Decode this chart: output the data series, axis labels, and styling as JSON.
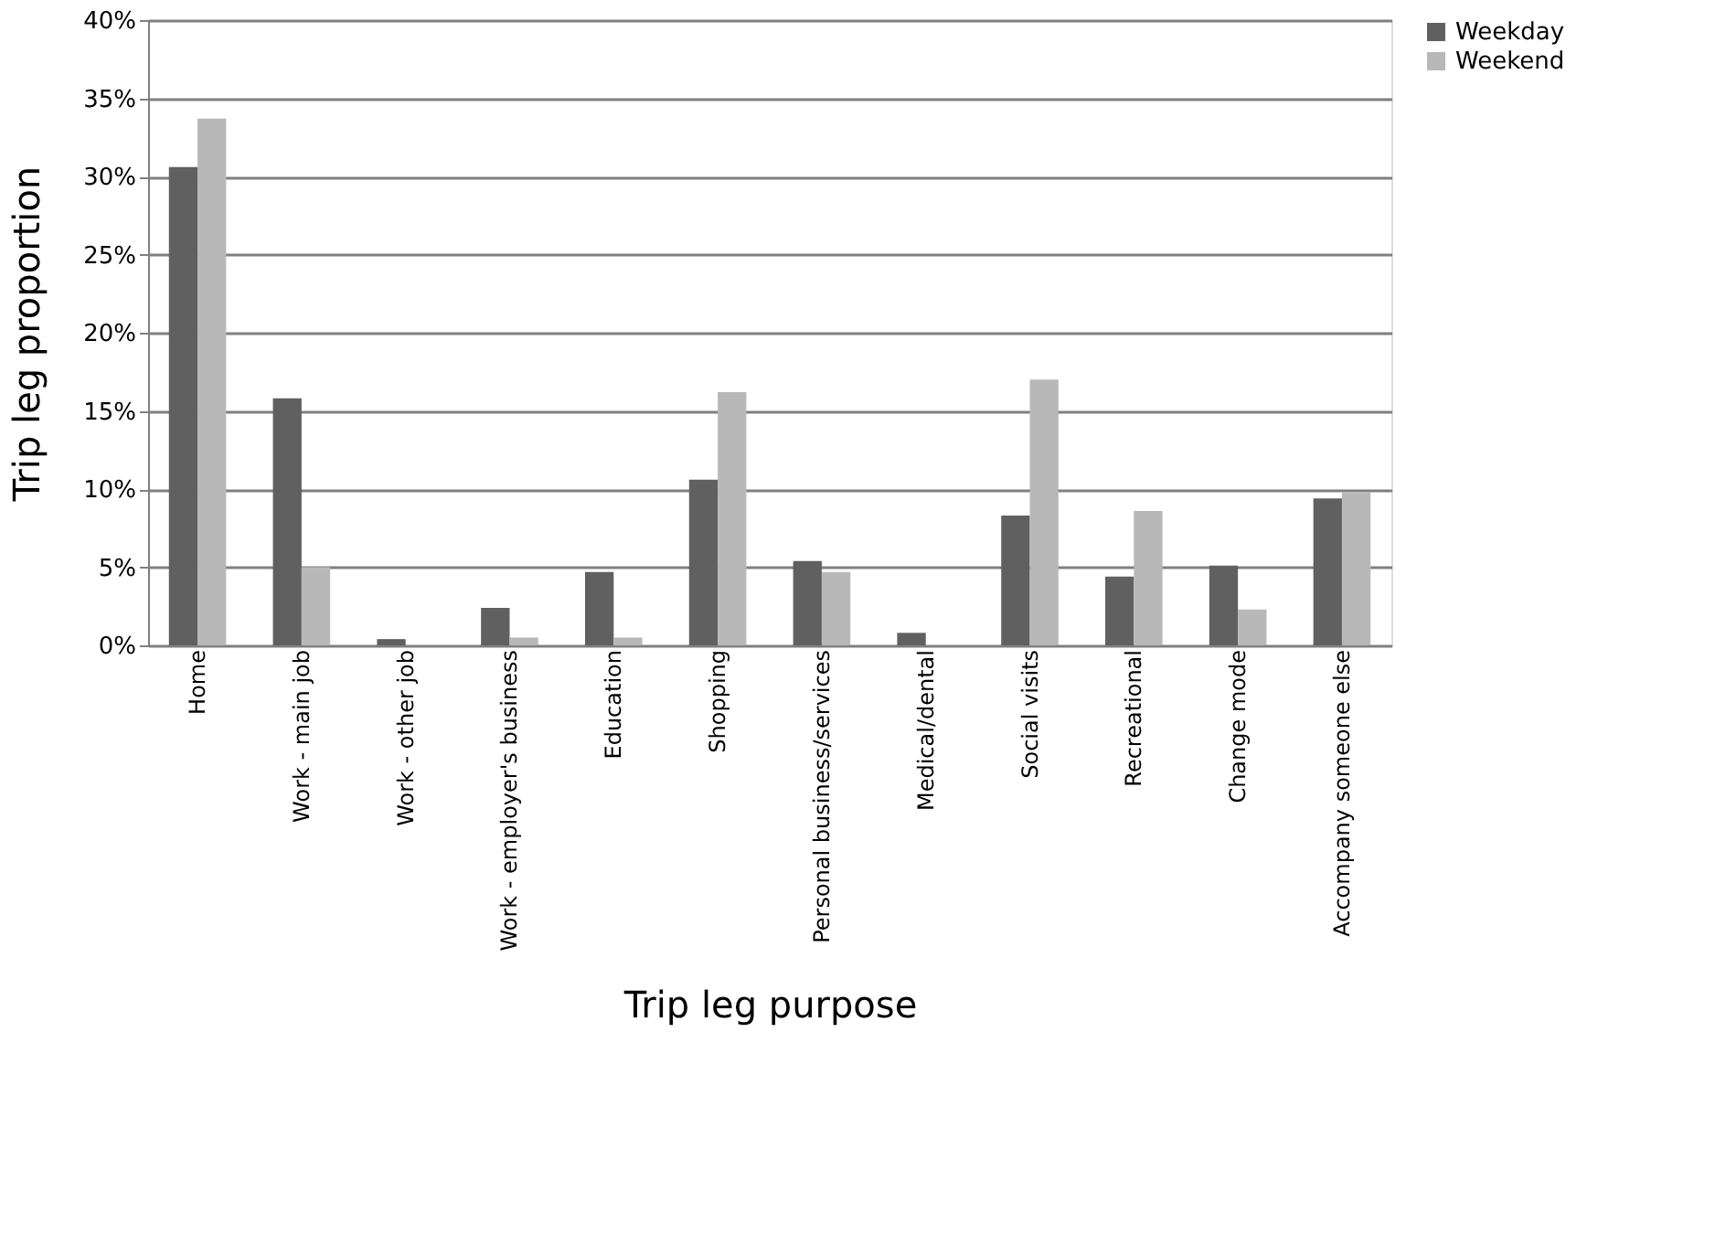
{
  "chart_data": {
    "type": "bar",
    "xlabel": "Trip leg purpose",
    "ylabel": "Trip leg proportion",
    "categories": [
      "Home",
      "Work - main job",
      "Work - other job",
      "Work - employer's business",
      "Education",
      "Shopping",
      "Personal business/services",
      "Medical/dental",
      "Social visits",
      "Recreational",
      "Change mode",
      "Accompany someone else"
    ],
    "series": [
      {
        "name": "Weekday",
        "color": "#606060",
        "values": [
          30.6,
          15.8,
          0.4,
          2.4,
          4.7,
          10.6,
          5.4,
          0.8,
          8.3,
          4.4,
          5.1,
          9.4
        ]
      },
      {
        "name": "Weekend",
        "color": "#b8b8b8",
        "values": [
          33.7,
          5.0,
          0,
          0.5,
          0.5,
          16.2,
          4.7,
          0,
          17.0,
          8.6,
          2.3,
          9.8
        ]
      }
    ],
    "ylim": [
      0,
      40
    ],
    "yticks": [
      {
        "value": 0,
        "label": "0%"
      },
      {
        "value": 5,
        "label": "5%"
      },
      {
        "value": 10,
        "label": "10%"
      },
      {
        "value": 15,
        "label": "15%"
      },
      {
        "value": 20,
        "label": "20%"
      },
      {
        "value": 25,
        "label": "25%"
      },
      {
        "value": 30,
        "label": "30%"
      },
      {
        "value": 35,
        "label": "35%"
      },
      {
        "value": 40,
        "label": "40%"
      }
    ],
    "grid": "y",
    "legend": "right"
  }
}
